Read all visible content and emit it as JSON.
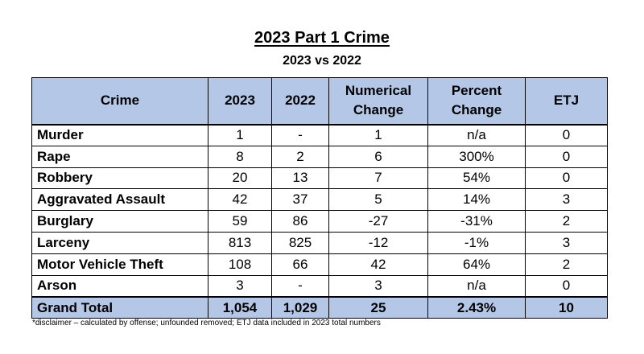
{
  "title": "2023 Part 1 Crime",
  "subtitle": "2023 vs 2022",
  "table": {
    "headers": {
      "crime": "Crime",
      "y2023": "2023",
      "y2022": "2022",
      "numerical_change": "Numerical Change",
      "percent_change": "Percent Change",
      "etj": "ETJ"
    },
    "rows": [
      {
        "crime": "Murder",
        "y2023": "1",
        "y2022": "-",
        "numerical_change": "1",
        "percent_change": "n/a",
        "etj": "0"
      },
      {
        "crime": "Rape",
        "y2023": "8",
        "y2022": "2",
        "numerical_change": "6",
        "percent_change": "300%",
        "etj": "0"
      },
      {
        "crime": "Robbery",
        "y2023": "20",
        "y2022": "13",
        "numerical_change": "7",
        "percent_change": "54%",
        "etj": "0"
      },
      {
        "crime": "Aggravated Assault",
        "y2023": "42",
        "y2022": "37",
        "numerical_change": "5",
        "percent_change": "14%",
        "etj": "3"
      },
      {
        "crime": "Burglary",
        "y2023": "59",
        "y2022": "86",
        "numerical_change": "-27",
        "percent_change": "-31%",
        "etj": "2"
      },
      {
        "crime": "Larceny",
        "y2023": "813",
        "y2022": "825",
        "numerical_change": "-12",
        "percent_change": "-1%",
        "etj": "3"
      },
      {
        "crime": "Motor Vehicle Theft",
        "y2023": "108",
        "y2022": "66",
        "numerical_change": "42",
        "percent_change": "64%",
        "etj": "2"
      },
      {
        "crime": "Arson",
        "y2023": "3",
        "y2022": "-",
        "numerical_change": "3",
        "percent_change": "n/a",
        "etj": "0"
      }
    ],
    "total": {
      "crime": "Grand Total",
      "y2023": "1,054",
      "y2022": "1,029",
      "numerical_change": "25",
      "percent_change": "2.43%",
      "etj": "10"
    }
  },
  "disclaimer": "*disclaimer – calculated by offense; unfounded removed; ETJ data included in 2023 total numbers",
  "colors": {
    "header_fill": "#b4c7e7",
    "border": "#000000",
    "background": "#ffffff"
  }
}
